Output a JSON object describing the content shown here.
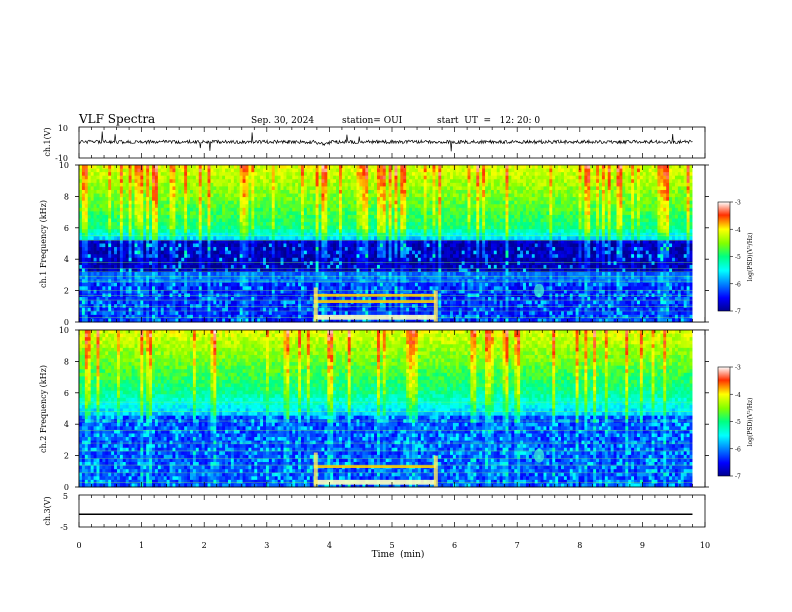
{
  "header": {
    "title": "VLF Spectra",
    "date": "Sep. 30, 2024",
    "station": "station= OUI",
    "start": "start  UT  =   12: 20: 0"
  },
  "chart_data": [
    {
      "type": "line",
      "panel": "ch1-waveform",
      "ylabel": "ch.1(V)",
      "ylim": [
        -10,
        10
      ],
      "yticks": [
        "10",
        "-10"
      ],
      "x_range_min": [
        0,
        9.8
      ],
      "trace_color": "#000000"
    },
    {
      "type": "heatmap",
      "panel": "ch1-spectrogram",
      "ylabel": "ch.1\nFrequency (kHz)",
      "ylim": [
        0,
        10
      ],
      "yticks": [
        "0",
        "2",
        "4",
        "6",
        "8",
        "10"
      ],
      "colorbar": {
        "label": "log(PSD)(V²/Hz)",
        "range": [
          -7,
          -3
        ],
        "ticks": [
          "-3",
          "-4",
          "-5",
          "-6",
          "-7"
        ],
        "colormap": "jet"
      },
      "features": {
        "noise_floor_below_kHz": 5.5,
        "broadband_above_kHz": 6,
        "event_window_min": [
          3.75,
          5.7
        ],
        "event_bands_kHz": [
          0.3,
          1.3,
          1.7
        ],
        "burst_min": 7.35
      }
    },
    {
      "type": "heatmap",
      "panel": "ch2-spectrogram",
      "ylabel": "ch.2\nFrequency (kHz)",
      "ylim": [
        0,
        10
      ],
      "yticks": [
        "0",
        "2",
        "4",
        "6",
        "8",
        "10"
      ],
      "colorbar": {
        "label": "log(PSD)(V²/Hz)",
        "range": [
          -7,
          -3
        ],
        "ticks": [
          "-3",
          "-4",
          "-5",
          "-6",
          "-7"
        ],
        "colormap": "jet"
      },
      "features": {
        "event_window_min": [
          3.75,
          5.7
        ],
        "event_bands_kHz": [
          0.3,
          1.3
        ],
        "burst_min": 7.35
      }
    },
    {
      "type": "line",
      "panel": "ch3-waveform",
      "ylabel": "ch.3(V)",
      "ylim": [
        -5,
        5
      ],
      "yticks": [
        "5",
        "-5"
      ],
      "x_range_min": [
        0,
        9.8
      ],
      "constant_value_V": -1,
      "trace_color": "#000000"
    }
  ],
  "xaxis": {
    "label": "Time  (min)",
    "range": [
      0,
      10
    ],
    "ticks": [
      "0",
      "1",
      "2",
      "3",
      "4",
      "5",
      "6",
      "7",
      "8",
      "9",
      "10"
    ]
  }
}
